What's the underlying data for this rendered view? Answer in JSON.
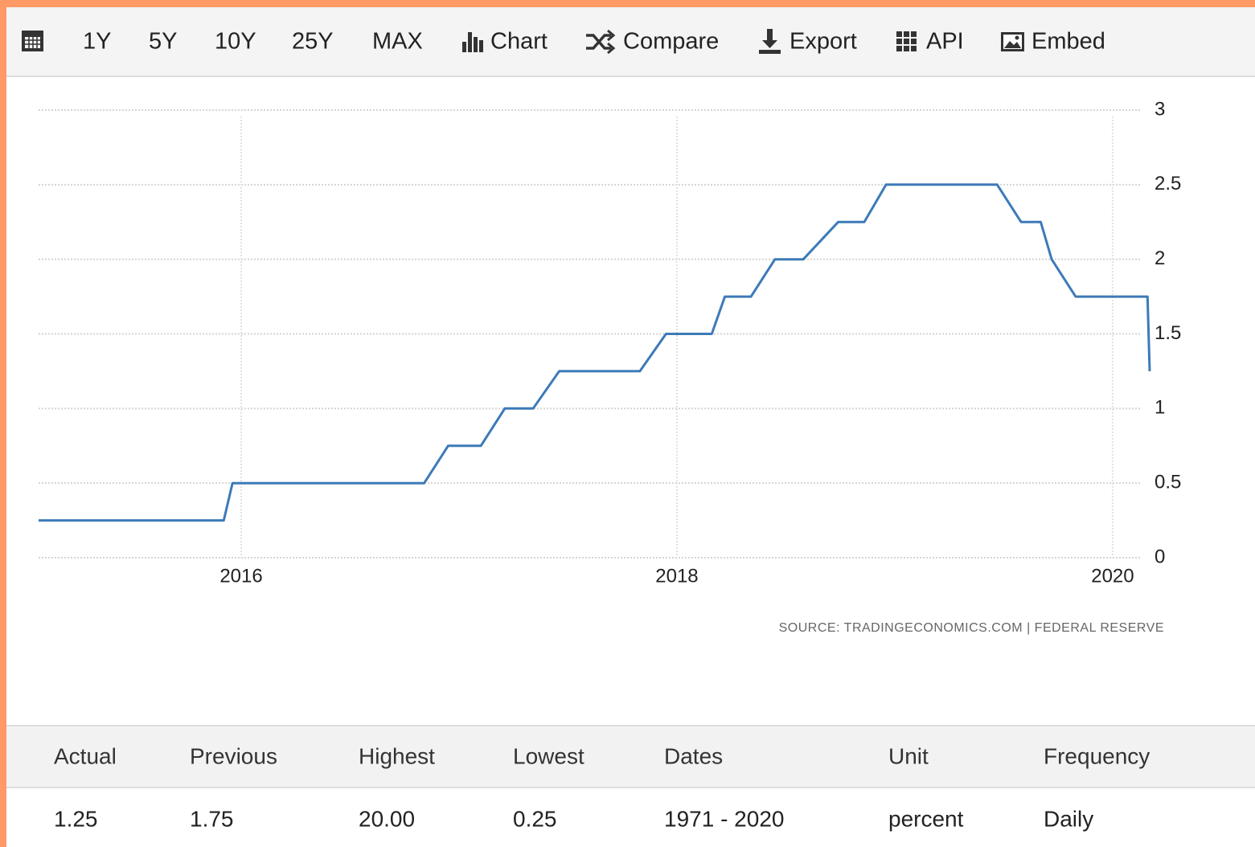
{
  "toolbar": {
    "items": [
      "1Y",
      "5Y",
      "10Y",
      "25Y",
      "MAX",
      "Chart",
      "Compare",
      "Export",
      "API",
      "Embed"
    ]
  },
  "chart_data": {
    "type": "line",
    "x": [
      2015.07,
      2015.92,
      2015.96,
      2016.84,
      2016.95,
      2017.1,
      2017.21,
      2017.34,
      2017.46,
      2017.83,
      2017.95,
      2018.16,
      2018.22,
      2018.34,
      2018.45,
      2018.58,
      2018.74,
      2018.86,
      2018.96,
      2019.47,
      2019.58,
      2019.67,
      2019.72,
      2019.83,
      2020.16,
      2020.17
    ],
    "values": [
      0.25,
      0.25,
      0.5,
      0.5,
      0.75,
      0.75,
      1.0,
      1.0,
      1.25,
      1.25,
      1.5,
      1.5,
      1.75,
      1.75,
      2.0,
      2.0,
      2.25,
      2.25,
      2.5,
      2.5,
      2.25,
      2.25,
      2.0,
      1.75,
      1.75,
      1.25
    ],
    "color": "#3d7ab8",
    "xlim": [
      2015.07,
      2020.17
    ],
    "xticks": [
      2016,
      2018,
      2020
    ],
    "ylim": [
      0,
      3
    ],
    "yticks": [
      0,
      0.5,
      1,
      1.5,
      2,
      2.5,
      3
    ],
    "grid": true,
    "source": "SOURCE: TRADINGECONOMICS.COM | FEDERAL RESERVE"
  },
  "table": {
    "header": [
      "Actual",
      "Previous",
      "Highest",
      "Lowest",
      "Dates",
      "Unit",
      "Frequency"
    ],
    "rows": [
      [
        "1.25",
        "1.75",
        "20.00",
        "0.25",
        "1971 - 2020",
        "percent",
        "Daily"
      ]
    ]
  }
}
